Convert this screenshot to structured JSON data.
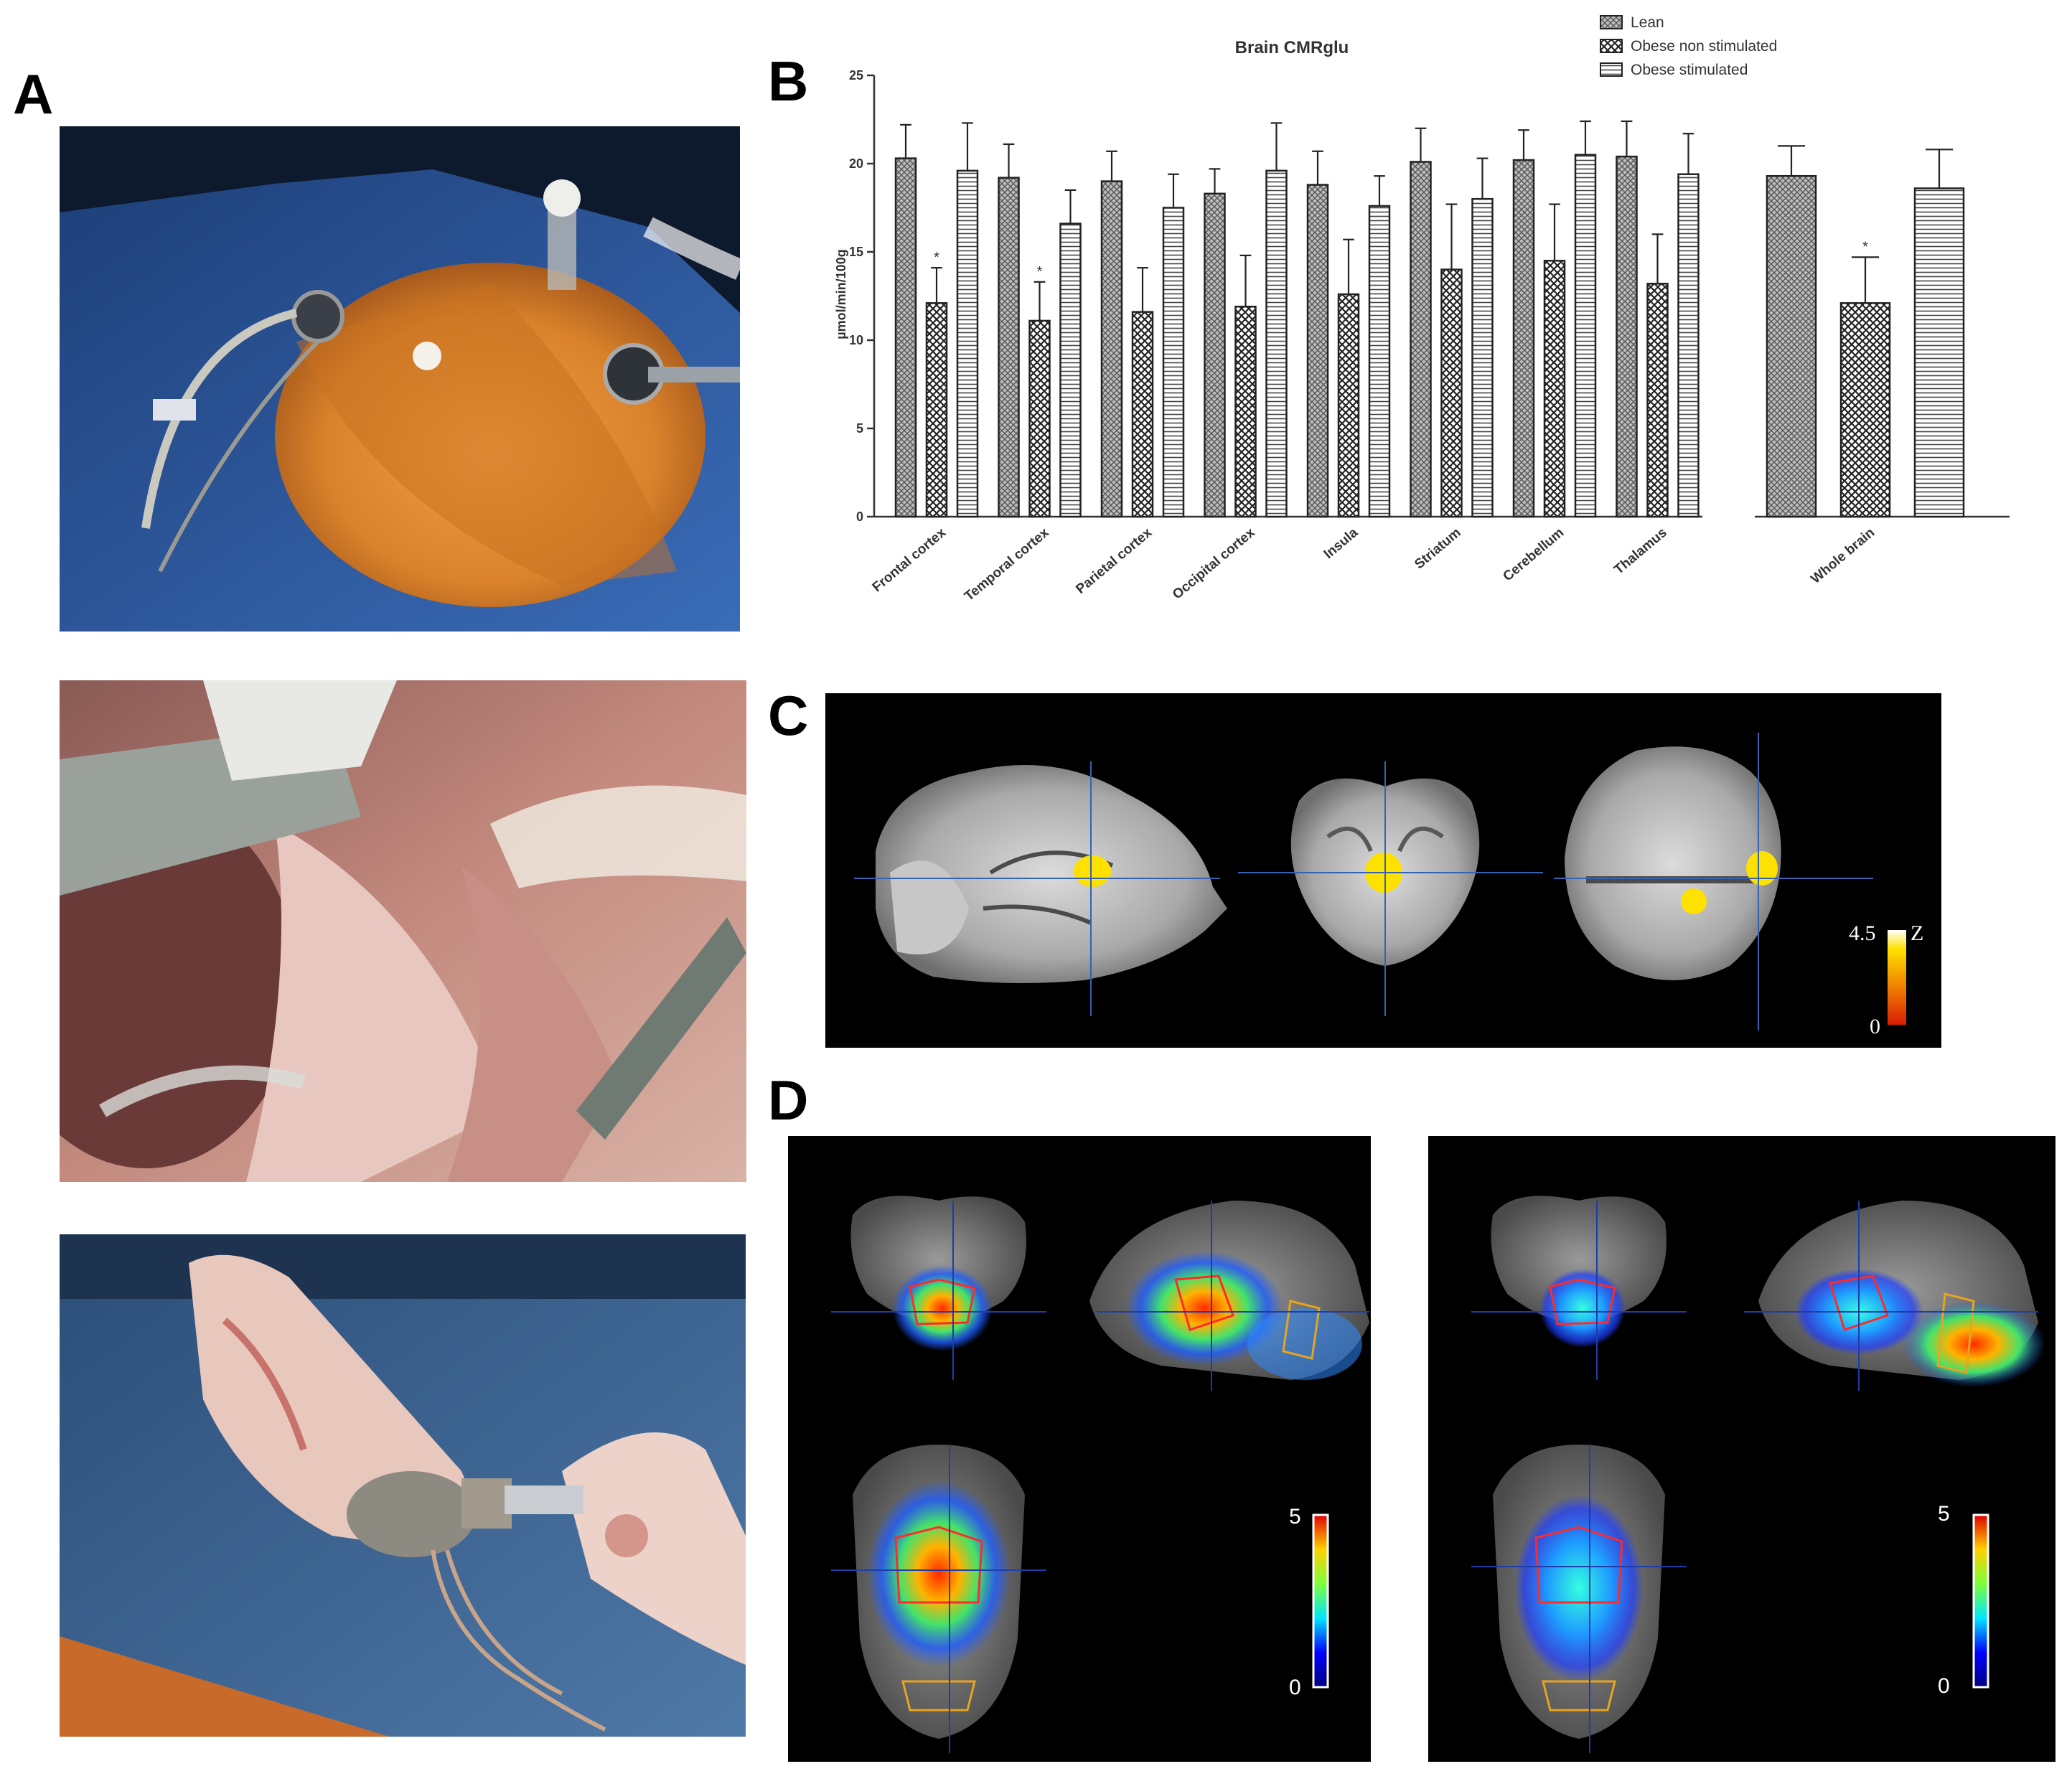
{
  "figure": {
    "panels": [
      {
        "id": "A",
        "label": "A"
      },
      {
        "id": "B",
        "label": "B"
      },
      {
        "id": "C",
        "label": "C"
      },
      {
        "id": "D",
        "label": "D"
      }
    ]
  },
  "colors": {
    "drape": "#2f5fa8",
    "skin": "#d9822b",
    "tissue": "#b9806f",
    "glove": "#e9d2c8",
    "black": "#000000"
  },
  "chart_data": {
    "type": "bar",
    "title": "Brain CMRglu",
    "ylabel": "µmol/min/100g",
    "xlabel": "",
    "ylim": [
      0,
      25
    ],
    "yticks": [
      0,
      5,
      10,
      15,
      20,
      25
    ],
    "legend_position": "top-right",
    "categories": [
      "Frontal cortex",
      "Temporal cortex",
      "Parietal cortex",
      "Occipital cortex",
      "Insula",
      "Striatum",
      "Cerebellum",
      "Thalamus",
      "Whole brain"
    ],
    "series": [
      {
        "name": "Lean",
        "pattern": "dense-crosshatch",
        "values": [
          20.3,
          19.2,
          19.0,
          18.3,
          18.8,
          20.1,
          20.2,
          20.4,
          19.3
        ],
        "errors": [
          1.9,
          1.9,
          1.7,
          1.4,
          1.9,
          1.9,
          1.7,
          2.0,
          1.7
        ]
      },
      {
        "name": "Obese non stimulated",
        "pattern": "checker",
        "values": [
          12.1,
          11.1,
          11.6,
          11.9,
          12.6,
          14.0,
          14.5,
          13.2,
          12.1
        ],
        "errors": [
          2.0,
          2.2,
          2.5,
          2.9,
          3.1,
          3.7,
          3.2,
          2.8,
          2.6
        ]
      },
      {
        "name": "Obese stimulated",
        "pattern": "horizontal-lines",
        "values": [
          19.6,
          16.6,
          17.5,
          19.6,
          17.6,
          18.0,
          20.5,
          19.4,
          18.6
        ],
        "errors": [
          2.7,
          1.9,
          1.9,
          2.7,
          1.7,
          2.3,
          1.9,
          2.3,
          2.2
        ]
      }
    ],
    "significance": [
      {
        "category": "Frontal cortex",
        "series": "Obese non stimulated",
        "mark": "*"
      },
      {
        "category": "Temporal cortex",
        "series": "Obese non stimulated",
        "mark": "*"
      },
      {
        "category": "Whole brain",
        "series": "Obese non stimulated",
        "mark": "*"
      }
    ]
  },
  "panel_c": {
    "colorbar": {
      "max": "4.5",
      "min": "0",
      "unit": "Z"
    }
  },
  "panel_d": {
    "left_colorbar": {
      "max": "5",
      "min": "0"
    },
    "right_colorbar": {
      "max": "5",
      "min": "0"
    }
  }
}
